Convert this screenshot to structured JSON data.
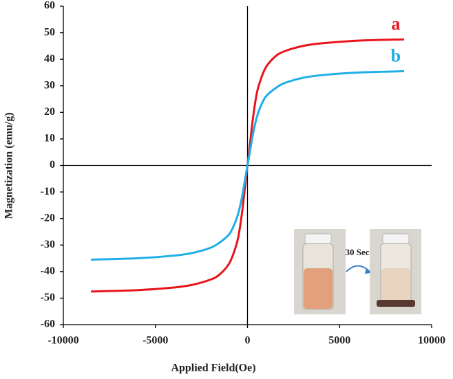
{
  "chart_data": {
    "type": "line",
    "xlabel": "Applied Field(Oe)",
    "ylabel": "Magnetization (emu/g)",
    "x": [
      -8500,
      -6000,
      -4000,
      -3000,
      -2000,
      -1500,
      -1000,
      -700,
      -500,
      -300,
      -150,
      0,
      150,
      300,
      500,
      700,
      1000,
      1500,
      2000,
      3000,
      4000,
      6000,
      8500
    ],
    "series": [
      {
        "name": "a",
        "color": "#e8141c",
        "values": [
          -47.5,
          -47,
          -46,
          -45,
          -43,
          -41,
          -37,
          -32,
          -27,
          -18,
          -9,
          0,
          9,
          18,
          27,
          32,
          37,
          41,
          43,
          45,
          46,
          47,
          47.5
        ]
      },
      {
        "name": "b",
        "color": "#1eaee8",
        "values": [
          -35.5,
          -35,
          -34,
          -33,
          -31,
          -29,
          -26,
          -22,
          -18,
          -12,
          -6,
          0,
          6,
          12,
          18,
          22,
          26,
          29,
          31,
          33,
          34,
          35,
          35.5
        ]
      }
    ],
    "xlim": [
      -10000,
      10000
    ],
    "xticks": [
      -10000,
      -5000,
      0,
      5000,
      10000
    ],
    "ylim": [
      -60,
      60
    ],
    "yticks": [
      -60,
      -50,
      -40,
      -30,
      -20,
      -10,
      0,
      10,
      20,
      30,
      40,
      50,
      60
    ],
    "annotations": [
      "30 Sec"
    ]
  }
}
